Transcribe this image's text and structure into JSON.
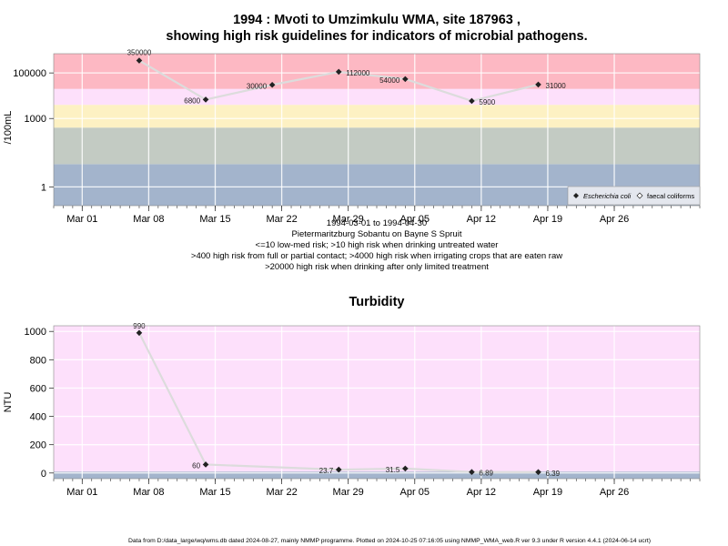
{
  "chart_data": [
    {
      "type": "line",
      "title": "1994 : Mvoti to Umzimkulu WMA, site 187963 ,",
      "subtitle": "showing high risk guidelines for indicators of microbial pathogens.",
      "ylabel": "/100mL",
      "xlabel": "",
      "yscale": "log",
      "ylim": [
        0.15,
        700000
      ],
      "xlim": [
        "1994-02-26",
        "1994-05-05"
      ],
      "x_ticks": [
        "Mar 01",
        "Mar 08",
        "Mar 15",
        "Mar 22",
        "Mar 29",
        "Apr 05",
        "Apr 12",
        "Apr 19",
        "Apr 26"
      ],
      "x_tick_dates": [
        "1994-03-01",
        "1994-03-08",
        "1994-03-15",
        "1994-03-22",
        "1994-03-29",
        "1994-04-05",
        "1994-04-12",
        "1994-04-19",
        "1994-04-26"
      ],
      "y_ticks": [
        "1",
        "1000",
        "100000"
      ],
      "y_tick_values": [
        1,
        1000,
        100000
      ],
      "risk_bands": [
        {
          "from": 0.15,
          "to": 10,
          "color": "#a3b4cc"
        },
        {
          "from": 10,
          "to": 400,
          "color": "#c3cbc3"
        },
        {
          "from": 400,
          "to": 4000,
          "color": "#fdf1c3"
        },
        {
          "from": 4000,
          "to": 20000,
          "color": "#fde0fb"
        },
        {
          "from": 20000,
          "to": 700000,
          "color": "#fdb8c3"
        }
      ],
      "series": [
        {
          "name": "Escherichia coli",
          "color": "#222222",
          "x": [
            "1994-03-07",
            "1994-03-14",
            "1994-03-21",
            "1994-03-28",
            "1994-04-04",
            "1994-04-11",
            "1994-04-18"
          ],
          "y": [
            350000,
            6800,
            30000,
            112000,
            54000,
            5900,
            31000
          ],
          "labels": [
            "350000",
            "6800",
            "30000",
            "112000",
            "54000",
            "5900",
            "31000"
          ]
        }
      ],
      "legend": {
        "position": "bottom-right",
        "entries": [
          "Escherichia coli",
          "faecal coliforms"
        ]
      },
      "caption": [
        "1994-03-01 to 1994-04-30",
        "Pietermaritzburg Sobantu on Bayne S Spruit",
        "<=10 low-med risk; >10 high risk when drinking untreated water",
        ">400 high risk from full or partial contact; >4000 high risk when irrigating crops that are eaten raw",
        ">20000 high risk when drinking after only limited treatment"
      ]
    },
    {
      "type": "line",
      "title": "Turbidity",
      "ylabel": "NTU",
      "xlabel": "",
      "ylim": [
        -40,
        1040
      ],
      "xlim": [
        "1994-02-26",
        "1994-05-05"
      ],
      "x_ticks": [
        "Mar 01",
        "Mar 08",
        "Mar 15",
        "Mar 22",
        "Mar 29",
        "Apr 05",
        "Apr 12",
        "Apr 19",
        "Apr 26"
      ],
      "x_tick_dates": [
        "1994-03-01",
        "1994-03-08",
        "1994-03-15",
        "1994-03-22",
        "1994-03-29",
        "1994-04-05",
        "1994-04-12",
        "1994-04-19",
        "1994-04-26"
      ],
      "y_ticks": [
        "0",
        "200",
        "400",
        "600",
        "800",
        "1000"
      ],
      "y_tick_values": [
        0,
        200,
        400,
        600,
        800,
        1000
      ],
      "background_bands": [
        {
          "from": -40,
          "to": 10,
          "color": "#a3b4cc"
        },
        {
          "from": 10,
          "to": 1040,
          "color": "#fde0fb"
        }
      ],
      "series": [
        {
          "name": "",
          "color": "#222222",
          "x": [
            "1994-03-07",
            "1994-03-14",
            "1994-03-28",
            "1994-04-04",
            "1994-04-11",
            "1994-04-18"
          ],
          "y": [
            990,
            60,
            23.7,
            31.5,
            6.89,
            6.39
          ],
          "labels": [
            "990",
            "60",
            "23.7",
            "31.5",
            "6.89",
            "6.39"
          ]
        }
      ]
    }
  ],
  "footer": "Data from D:/data_large/wq/wms.db dated 2024-08-27, mainly NMMP programme. Plotted on 2024-10-25 07:16:05 using NMMP_WMA_web.R ver 9.3 under R version 4.4.1 (2024-06-14 ucrt)"
}
